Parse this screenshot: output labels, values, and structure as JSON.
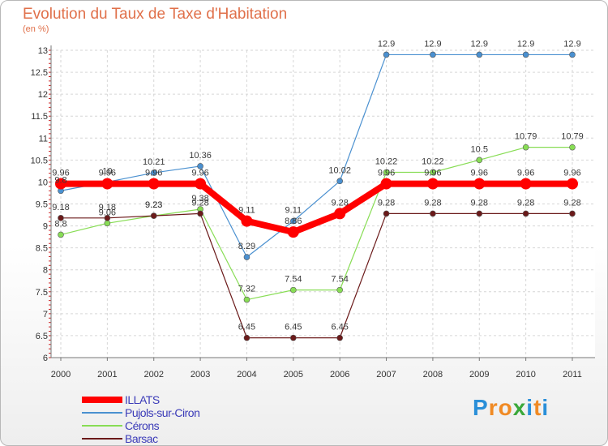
{
  "chart_data": {
    "type": "line",
    "title": "Evolution du Taux de Taxe d'Habitation",
    "subtitle": "(en %)",
    "x": [
      "2000",
      "2001",
      "2002",
      "2003",
      "2004",
      "2005",
      "2006",
      "2007",
      "2008",
      "2009",
      "2010",
      "2011"
    ],
    "ylim": [
      6,
      13
    ],
    "yticks": [
      "6",
      "6.5",
      "7",
      "7.5",
      "8",
      "8.5",
      "9",
      "9.5",
      "10",
      "10.5",
      "11",
      "11.5",
      "12",
      "12.5",
      "13"
    ],
    "grid": true,
    "legend_position": "bottom-left",
    "series": [
      {
        "name": "ILLATS",
        "color": "#ff0000",
        "values": [
          9.96,
          9.96,
          9.96,
          9.96,
          9.11,
          8.86,
          9.28,
          9.96,
          9.96,
          9.96,
          9.96,
          9.96
        ],
        "labels": [
          "9.96",
          "9.96",
          "9.96",
          "9.96",
          "9.11",
          "8.86",
          "9.28",
          "9.96",
          "9.96",
          "9.96",
          "9.96",
          "9.96"
        ]
      },
      {
        "name": "Pujols-sur-Ciron",
        "color": "#4a90d0",
        "values": [
          9.8,
          10.0,
          10.21,
          10.36,
          8.29,
          9.11,
          10.02,
          12.9,
          12.9,
          12.9,
          12.9,
          12.9
        ],
        "labels": [
          "9.8",
          "10",
          "10.21",
          "10.36",
          "8.29",
          "9.11",
          "10.02",
          "12.9",
          "12.9",
          "12.9",
          "12.9",
          "12.9"
        ]
      },
      {
        "name": "Cérons",
        "color": "#88dd55",
        "values": [
          8.8,
          9.06,
          9.23,
          9.38,
          7.32,
          7.54,
          7.54,
          10.22,
          10.22,
          10.5,
          10.79,
          10.79
        ],
        "labels": [
          "8.8",
          "9.06",
          "9.23",
          "9.38",
          "7.32",
          "7.54",
          "7.54",
          "10.22",
          "10.22",
          "10.5",
          "10.79",
          "10.79"
        ]
      },
      {
        "name": "Barsac",
        "color": "#6b1a1a",
        "values": [
          9.18,
          9.18,
          9.23,
          9.28,
          6.45,
          6.45,
          6.45,
          9.28,
          9.28,
          9.28,
          9.28,
          9.28
        ],
        "labels": [
          "9.18",
          "9.18",
          "9.23",
          "9.28",
          "6.45",
          "6.45",
          "6.45",
          "9.28",
          "9.28",
          "9.28",
          "9.28",
          "9.28"
        ]
      }
    ]
  },
  "brand": {
    "letters": [
      "P",
      "r",
      "o",
      "x",
      "i",
      "t",
      "i"
    ],
    "colors": [
      "#2a8fd8",
      "#f08a24",
      "#f08a24",
      "#3aa83a",
      "#2a8fd8",
      "#f08a24",
      "#2a8fd8"
    ]
  }
}
